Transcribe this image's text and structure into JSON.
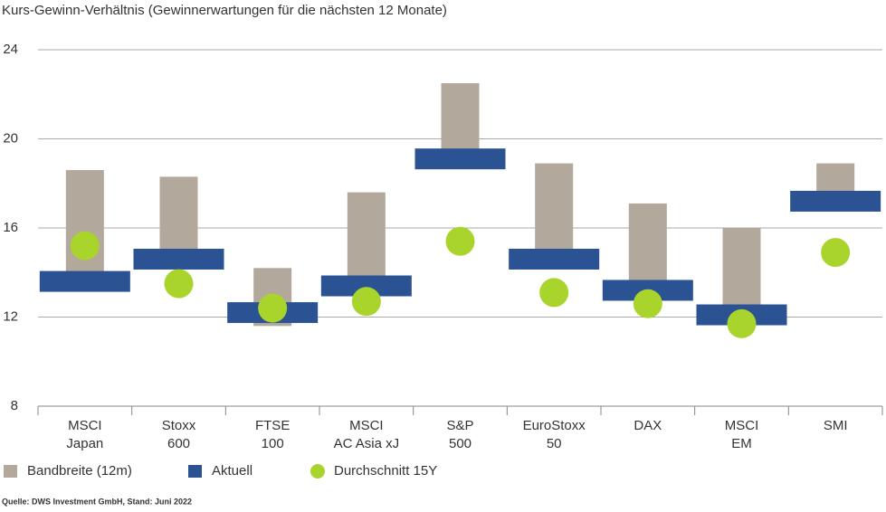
{
  "chart_data": {
    "type": "range",
    "title": "Kurs-Gewinn-Verhältnis (Gewinnerwartungen für die nächsten 12 Monate)",
    "categories": [
      "MSCI\nJapan",
      "Stoxx\n600",
      "FTSE\n100",
      "MSCI\nAC Asia xJ",
      "S&P\n500",
      "EuroStoxx\n50",
      "DAX",
      "MSCI\nEM",
      "SMI"
    ],
    "series": [
      {
        "name": "Bandbreite (12m)",
        "color": "#b3a89c",
        "low": [
          13.6,
          14.6,
          11.6,
          13.4,
          19.1,
          14.5,
          13.2,
          12.0,
          17.1
        ],
        "high": [
          18.6,
          18.3,
          14.2,
          17.6,
          22.5,
          18.9,
          17.1,
          16.0,
          18.9
        ]
      },
      {
        "name": "Aktuell",
        "color": "#2b5394",
        "values": [
          13.6,
          14.6,
          12.2,
          13.4,
          19.1,
          14.6,
          13.2,
          12.1,
          17.2
        ]
      },
      {
        "name": "Durchschnitt 15Y",
        "color": "#a8d42c",
        "values": [
          15.2,
          13.5,
          12.4,
          12.7,
          15.4,
          13.1,
          12.6,
          11.7,
          14.9
        ]
      }
    ],
    "ylim": [
      8,
      24
    ],
    "yticks": [
      8,
      12,
      16,
      20,
      24
    ],
    "grid": true,
    "source": "Quelle: DWS Investment GmbH, Stand: Juni 2022"
  }
}
